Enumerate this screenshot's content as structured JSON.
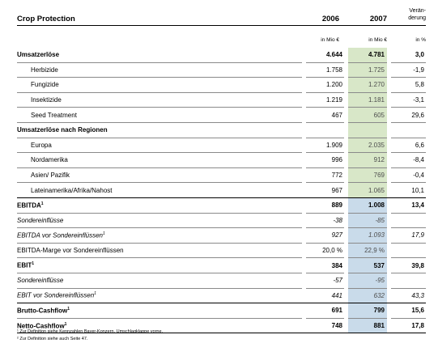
{
  "header": {
    "title": "Crop Protection",
    "year_2006": "2006",
    "year_2007": "2007",
    "change_line1": "Verän-",
    "change_line2": "derung",
    "unit_2006": "in Mio €",
    "unit_2007": "in Mio €",
    "unit_change": "in %"
  },
  "rows": [
    {
      "label": "Umsatzerlöse",
      "v2006": "4.644",
      "v2007": "4.781",
      "change": "3,0"
    },
    {
      "label": "Herbizide",
      "v2006": "1.758",
      "v2007": "1.725",
      "change": "-1,9"
    },
    {
      "label": "Fungizide",
      "v2006": "1.200",
      "v2007": "1.270",
      "change": "5,8"
    },
    {
      "label": "Insektizide",
      "v2006": "1.219",
      "v2007": "1.181",
      "change": "-3,1"
    },
    {
      "label": "Seed Treatment",
      "v2006": "467",
      "v2007": "605",
      "change": "29,6"
    },
    {
      "label": "Umsatzerlöse nach Regionen",
      "v2006": "",
      "v2007": "",
      "change": ""
    },
    {
      "label": "Europa",
      "v2006": "1.909",
      "v2007": "2.035",
      "change": "6,6"
    },
    {
      "label": "Nordamerika",
      "v2006": "996",
      "v2007": "912",
      "change": "-8,4"
    },
    {
      "label": "Asien/ Pazifik",
      "v2006": "772",
      "v2007": "769",
      "change": "-0,4"
    },
    {
      "label": "Lateinamerika/Afrika/Nahost",
      "v2006": "967",
      "v2007": "1.065",
      "change": "10,1"
    },
    {
      "label": "EBITDA",
      "sup": "1",
      "v2006": "889",
      "v2007": "1.008",
      "change": "13,4"
    },
    {
      "label": "Sondereinflüsse",
      "v2006": "-38",
      "v2007": "-85",
      "change": ""
    },
    {
      "label": "EBITDA vor Sondereinflüssen",
      "sup": "1",
      "v2006": "927",
      "v2007": "1.093",
      "change": "17,9"
    },
    {
      "label": "EBITDA-Marge vor Sondereinflüssen",
      "v2006": "20,0 %",
      "v2007": "22,9 %",
      "change": ""
    },
    {
      "label": "EBIT",
      "sup": "1",
      "v2006": "384",
      "v2007": "537",
      "change": "39,8"
    },
    {
      "label": "Sondereinflüsse",
      "v2006": "-57",
      "v2007": "-95",
      "change": ""
    },
    {
      "label": "EBIT vor Sondereinflüssen",
      "sup": "1",
      "v2006": "441",
      "v2007": "632",
      "change": "43,3"
    },
    {
      "label": "Brutto-Cashflow",
      "sup": "1",
      "v2006": "691",
      "v2007": "799",
      "change": "15,6"
    },
    {
      "label": "Netto-Cashflow",
      "sup": "1",
      "v2006": "748",
      "v2007": "881",
      "change": "17,8"
    }
  ],
  "footnotes": [
    "¹ Zur Definition siehe Kennzahlen Bayer-Konzern, Umschlagklappe vorne.",
    "² Zur Definition siehe auch Seite 47."
  ]
}
